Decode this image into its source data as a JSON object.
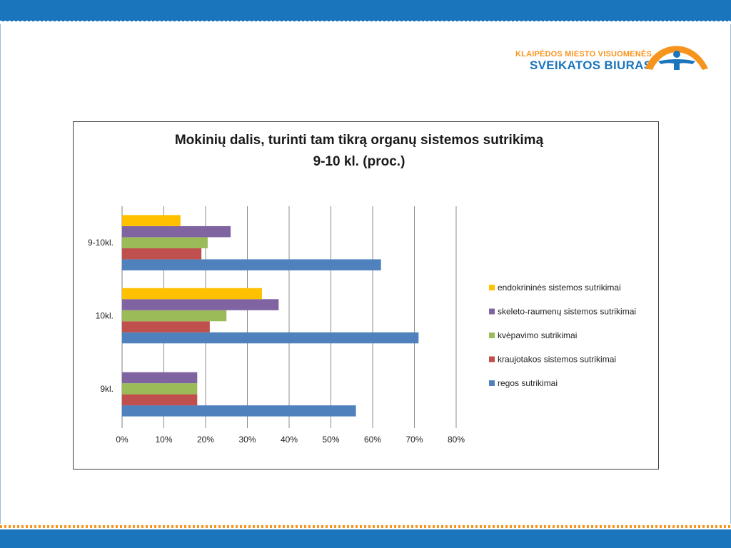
{
  "logo": {
    "line1": "KLAIPĖDOS MIESTO VISUOMENĖS",
    "line2": "SVEIKATOS BIURAS"
  },
  "colors": {
    "band_blue": "#1b75bc",
    "accent_orange": "#f7941d"
  },
  "chart_data": {
    "type": "bar",
    "orientation": "horizontal",
    "title_line1": "Mokinių dalis, turinti tam tikrą organų sistemos sutrikimą",
    "title_line2": "9-10 kl. (proc.)",
    "categories": [
      "9kl.",
      "10kl.",
      "9-10kl."
    ],
    "x_ticks": [
      "0%",
      "10%",
      "20%",
      "30%",
      "40%",
      "50%",
      "60%",
      "70%",
      "80%"
    ],
    "xlim": [
      0,
      80
    ],
    "grid": "vertical",
    "legend_position": "right",
    "series": [
      {
        "name": "regos sutrikimai",
        "color": "#4f81bd",
        "values": [
          56,
          71,
          62
        ]
      },
      {
        "name": "kraujotakos sistemos sutrikimai",
        "color": "#c0504d",
        "values": [
          18,
          21,
          19
        ]
      },
      {
        "name": "kvėpavimo sutrikimai",
        "color": "#9bbb59",
        "values": [
          18,
          25,
          20.5
        ]
      },
      {
        "name": "skeleto-raumenų sistemos sutrikimai",
        "color": "#8064a2",
        "values": [
          18,
          37.5,
          26
        ]
      },
      {
        "name": "endokrininės sistemos sutrikimai",
        "color": "#ffc000",
        "values": [
          0,
          33.5,
          14
        ]
      }
    ],
    "legend_order": [
      "endokrininės sistemos sutrikimai",
      "skeleto-raumenų sistemos sutrikimai",
      "kvėpavimo sutrikimai",
      "kraujotakos sistemos sutrikimai",
      "regos sutrikimai"
    ]
  }
}
